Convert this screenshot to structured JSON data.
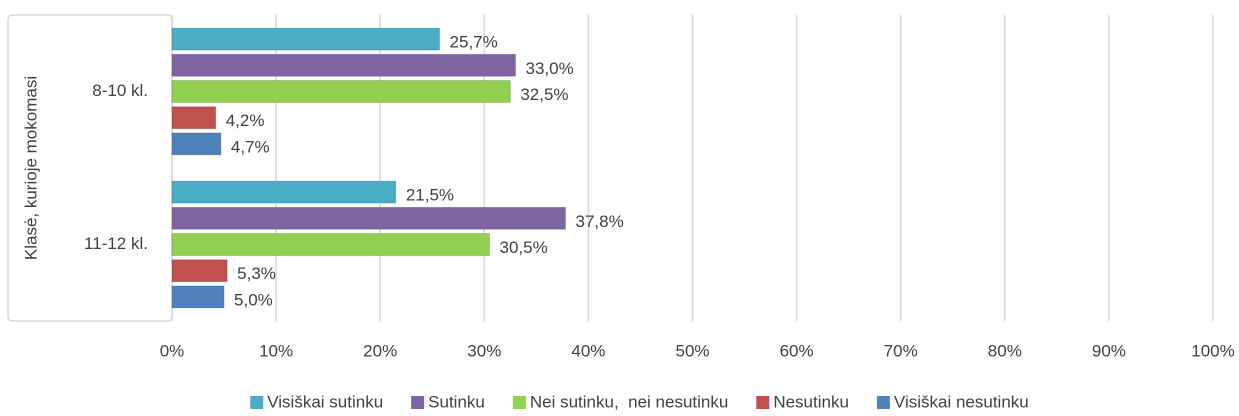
{
  "chart_data": {
    "type": "hbar",
    "y_axis_title": "Klasė, kurioje mokomasi",
    "categories": [
      "8-10 kl.",
      "11-12 kl."
    ],
    "series": [
      {
        "name": "Visiškai sutinku",
        "color": "#4bacc6",
        "values": [
          25.7,
          21.5
        ],
        "value_labels": [
          "25,7%",
          "21,5%"
        ]
      },
      {
        "name": "Sutinku",
        "color": "#8064a2",
        "values": [
          33.0,
          37.8
        ],
        "value_labels": [
          "33,0%",
          "37,8%"
        ]
      },
      {
        "name": "Nei sutinku,  nei nesutinku",
        "color": "#92d050",
        "values": [
          32.5,
          30.5
        ],
        "value_labels": [
          "32,5%",
          "30,5%"
        ]
      },
      {
        "name": "Nesutinku",
        "color": "#c0504d",
        "values": [
          4.2,
          5.3
        ],
        "value_labels": [
          "4,2%",
          "5,3%"
        ]
      },
      {
        "name": "Visiškai nesutinku",
        "color": "#4f81bd",
        "values": [
          4.7,
          5.0
        ],
        "value_labels": [
          "4,7%",
          "5,0%"
        ]
      }
    ],
    "xlim": [
      0,
      100
    ],
    "xticks": [
      {
        "value": 0,
        "label": "0%"
      },
      {
        "value": 10,
        "label": "10%"
      },
      {
        "value": 20,
        "label": "20%"
      },
      {
        "value": 30,
        "label": "30%"
      },
      {
        "value": 40,
        "label": "40%"
      },
      {
        "value": 50,
        "label": "50%"
      },
      {
        "value": 60,
        "label": "60%"
      },
      {
        "value": 70,
        "label": "70%"
      },
      {
        "value": 80,
        "label": "80%"
      },
      {
        "value": 90,
        "label": "90%"
      },
      {
        "value": 100,
        "label": "100%"
      }
    ],
    "grid": true,
    "legend": "bottom"
  }
}
